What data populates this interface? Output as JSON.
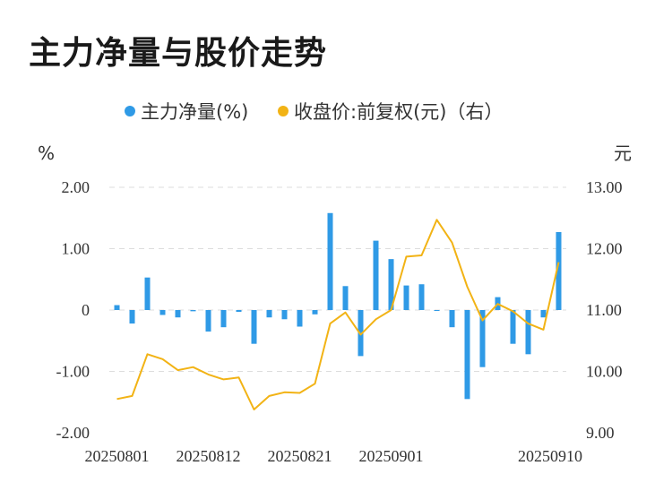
{
  "title": "主力净量与股价走势",
  "chart_data": {
    "type": "bar+line",
    "title": "主力净量与股价走势",
    "legend": [
      {
        "name": "主力净量(%)",
        "color": "#2f9ae6",
        "marker": "circle"
      },
      {
        "name": "收盘价:前复权(元)（右）",
        "color": "#f2b315",
        "marker": "circle"
      }
    ],
    "legend_placement": "top-center",
    "y_left": {
      "unit": "%",
      "range": [
        -2,
        2
      ],
      "ticks": [
        "2.00",
        "1.00",
        "0",
        "-1.00",
        "-2.00"
      ]
    },
    "y_right": {
      "unit": "元",
      "range": [
        9,
        13
      ],
      "ticks": [
        "13.00",
        "12.00",
        "11.00",
        "10.00",
        "9.00"
      ]
    },
    "x_tick_labels": [
      "20250801",
      "20250812",
      "20250821",
      "20250901",
      "20250910"
    ],
    "grid": "horizontal-dashed",
    "series": [
      {
        "name": "主力净量(%)",
        "type": "bar",
        "axis": "left",
        "color": "#2f9ae6",
        "values": [
          0.08,
          -0.22,
          0.53,
          -0.08,
          -0.12,
          -0.02,
          -0.35,
          -0.28,
          -0.03,
          -0.55,
          -0.12,
          -0.15,
          -0.27,
          -0.07,
          1.58,
          0.39,
          -0.75,
          1.13,
          0.83,
          0.4,
          0.42,
          -0.01,
          -0.28,
          -1.45,
          -0.93,
          0.21,
          -0.55,
          -0.72,
          -0.12,
          1.27
        ]
      },
      {
        "name": "收盘价:前复权(元)（右）",
        "type": "line",
        "axis": "right",
        "color": "#f2b315",
        "values": [
          9.55,
          9.6,
          10.28,
          10.2,
          10.02,
          10.07,
          9.95,
          9.87,
          9.9,
          9.38,
          9.6,
          9.66,
          9.65,
          9.8,
          10.78,
          10.96,
          10.6,
          10.85,
          11.0,
          11.87,
          11.89,
          12.47,
          12.1,
          11.38,
          10.83,
          11.1,
          10.98,
          10.78,
          10.68,
          11.78
        ]
      }
    ]
  }
}
